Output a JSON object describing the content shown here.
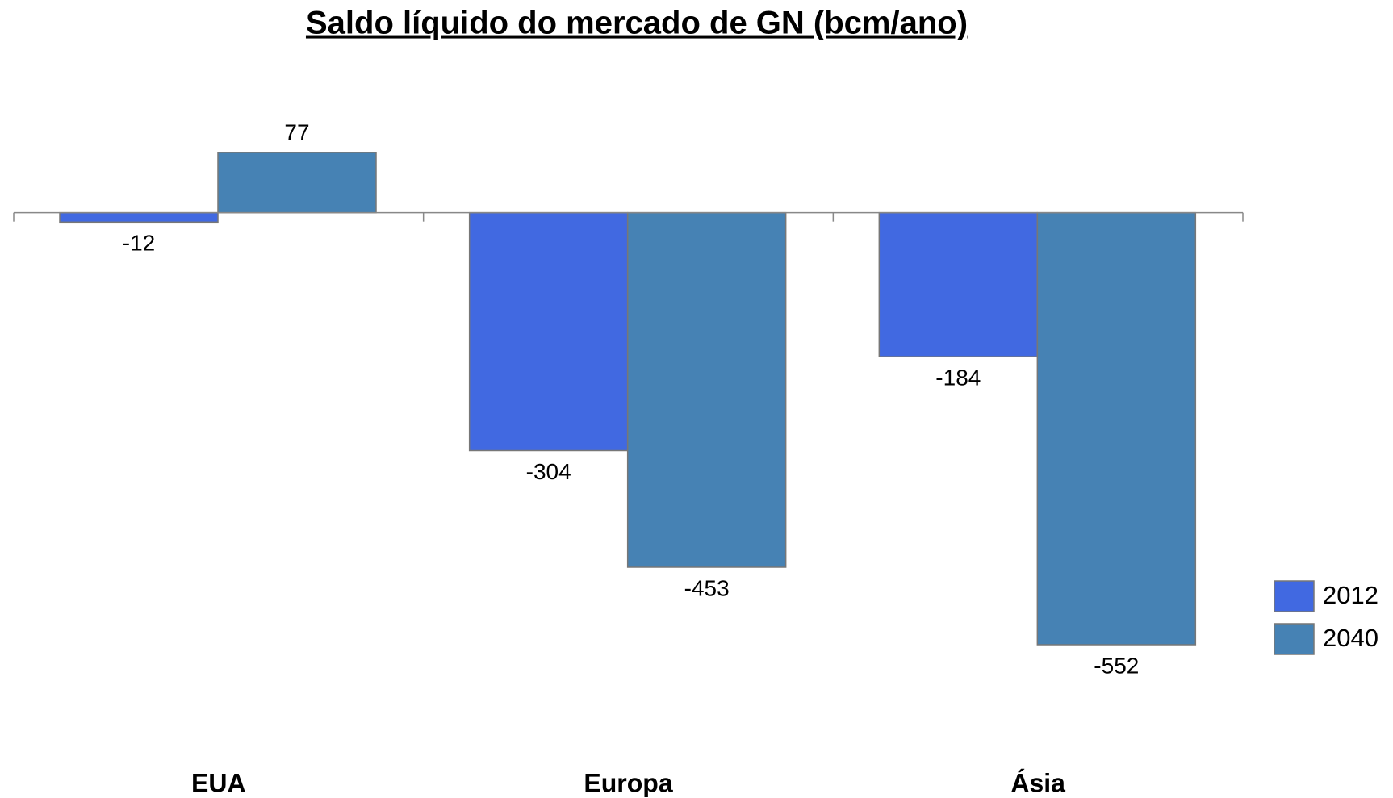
{
  "chart_data": {
    "type": "bar",
    "title": "Saldo líquido do mercado de GN (bcm/ano)",
    "categories": [
      "EUA",
      "Europa",
      "Ásia"
    ],
    "series": [
      {
        "name": "2012",
        "color": "#4169e1",
        "values": [
          -12,
          -304,
          -184
        ]
      },
      {
        "name": "2040",
        "color": "#4682b4",
        "values": [
          77,
          -453,
          -552
        ]
      }
    ],
    "legend": "right"
  }
}
